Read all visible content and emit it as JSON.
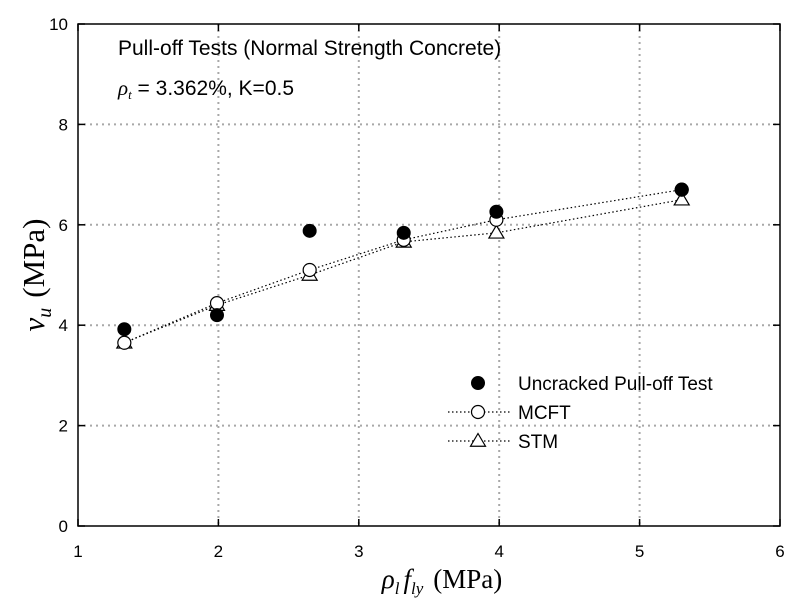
{
  "chart_data": {
    "type": "scatter",
    "title": "Pull-off Tests (Normal Strength Concrete)",
    "subtitle": {
      "symbol": "ρ",
      "subscript": "t",
      "rest": " = 3.362%, K=0.5"
    },
    "xlabel": {
      "symbol": "ρ",
      "sub1": "l",
      "var": "f",
      "sub2": "ly",
      "unit": "(MPa)"
    },
    "ylabel": {
      "var": "v",
      "sub": "u",
      "unit": "(MPa)"
    },
    "xlim": [
      1,
      6
    ],
    "ylim": [
      0,
      10
    ],
    "xticks": [
      1,
      2,
      3,
      4,
      5,
      6
    ],
    "yticks": [
      0,
      2,
      4,
      6,
      8,
      10
    ],
    "grid": true,
    "legend_position": "bottom-right",
    "series": [
      {
        "name": "Uncracked Pull-off Test",
        "marker": "filled-circle",
        "line": false,
        "x": [
          1.33,
          1.99,
          2.65,
          3.32,
          3.98,
          5.3
        ],
        "y": [
          3.92,
          4.2,
          5.88,
          5.84,
          6.26,
          6.7
        ]
      },
      {
        "name": "MCFT",
        "marker": "open-circle",
        "line": "dotted",
        "x": [
          1.33,
          1.99,
          2.65,
          3.32,
          3.98,
          5.3
        ],
        "y": [
          3.65,
          4.44,
          5.1,
          5.7,
          6.1,
          6.7
        ]
      },
      {
        "name": "STM",
        "marker": "open-triangle",
        "line": "dotted",
        "x": [
          1.33,
          1.99,
          2.65,
          3.32,
          3.98,
          5.3
        ],
        "y": [
          3.65,
          4.4,
          5.0,
          5.66,
          5.84,
          6.5
        ]
      }
    ]
  }
}
